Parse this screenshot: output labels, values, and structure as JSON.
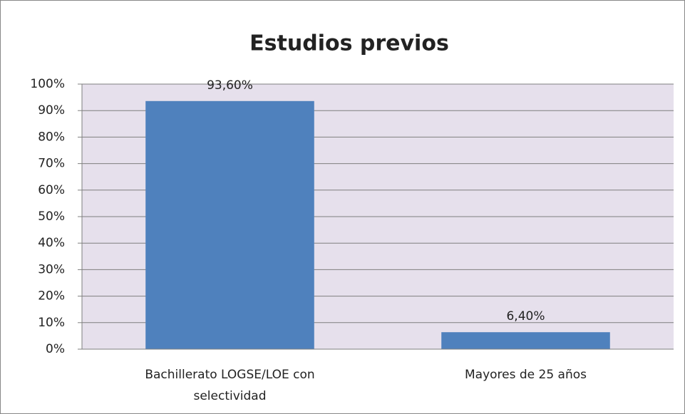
{
  "chart_data": {
    "type": "bar",
    "title": "Estudios previos",
    "categories": [
      "Bachillerato LOGSE/LOE con selectividad",
      "Mayores de 25 años"
    ],
    "values": [
      93.6,
      6.4
    ],
    "value_labels": [
      "93,60%",
      "6,40%"
    ],
    "color": "#4f81bd",
    "ylim": [
      0,
      100
    ],
    "yticks": [
      {
        "value": 0,
        "label": "0%"
      },
      {
        "value": 10,
        "label": "10%"
      },
      {
        "value": 20,
        "label": "20%"
      },
      {
        "value": 30,
        "label": "30%"
      },
      {
        "value": 40,
        "label": "40%"
      },
      {
        "value": 50,
        "label": "50%"
      },
      {
        "value": 60,
        "label": "60%"
      },
      {
        "value": 70,
        "label": "70%"
      },
      {
        "value": 80,
        "label": "80%"
      },
      {
        "value": 90,
        "label": "90%"
      },
      {
        "value": 100,
        "label": "100%"
      }
    ],
    "grid": true
  }
}
